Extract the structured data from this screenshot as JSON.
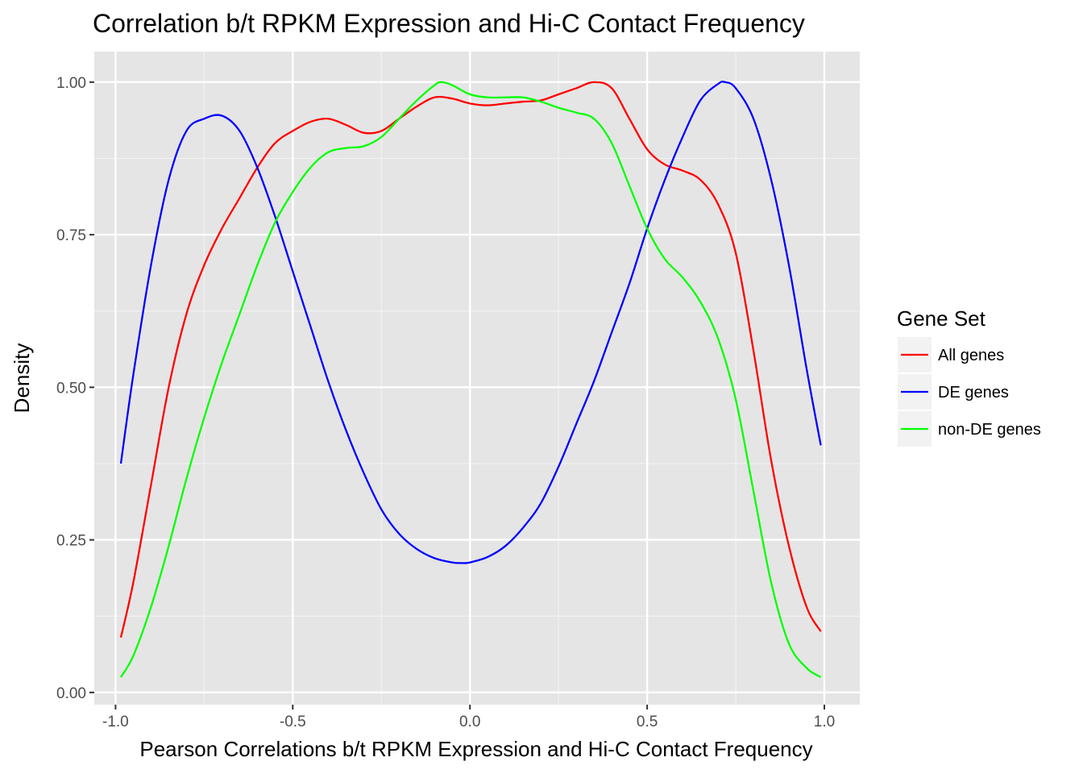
{
  "chart_data": {
    "type": "line",
    "title": "Correlation b/t RPKM Expression and Hi-C Contact Frequency",
    "xlabel": "Pearson Correlations b/t RPKM Expression and Hi-C Contact Frequency",
    "ylabel": "Density",
    "xlim": [
      -1.06,
      1.1
    ],
    "ylim": [
      -0.02,
      1.05
    ],
    "x_ticks": [
      -1.0,
      -0.5,
      0.0,
      0.5,
      1.0
    ],
    "x_tick_labels": [
      "-1.0",
      "-0.5",
      "0.0",
      "0.5",
      "1.0"
    ],
    "y_ticks": [
      0.0,
      0.25,
      0.5,
      0.75,
      1.0
    ],
    "y_tick_labels": [
      "0.00",
      "0.25",
      "0.50",
      "0.75",
      "1.00"
    ],
    "grid": true,
    "panel_background": "#e5e5e5",
    "legend": {
      "title": "Gene Set",
      "position": "right"
    },
    "series": [
      {
        "name": "All genes",
        "color": "#ff0000",
        "x": [
          -0.985,
          -0.95,
          -0.9,
          -0.85,
          -0.8,
          -0.75,
          -0.7,
          -0.65,
          -0.6,
          -0.55,
          -0.5,
          -0.45,
          -0.4,
          -0.35,
          -0.3,
          -0.25,
          -0.2,
          -0.15,
          -0.1,
          -0.05,
          0.0,
          0.05,
          0.1,
          0.15,
          0.2,
          0.25,
          0.3,
          0.35,
          0.4,
          0.45,
          0.5,
          0.55,
          0.6,
          0.65,
          0.7,
          0.75,
          0.8,
          0.85,
          0.9,
          0.95,
          0.99
        ],
        "y": [
          0.09,
          0.18,
          0.34,
          0.5,
          0.62,
          0.7,
          0.76,
          0.81,
          0.86,
          0.9,
          0.92,
          0.935,
          0.94,
          0.93,
          0.917,
          0.92,
          0.94,
          0.96,
          0.975,
          0.973,
          0.965,
          0.962,
          0.965,
          0.968,
          0.97,
          0.98,
          0.99,
          1.0,
          0.99,
          0.94,
          0.89,
          0.865,
          0.855,
          0.84,
          0.8,
          0.72,
          0.56,
          0.38,
          0.24,
          0.14,
          0.1
        ]
      },
      {
        "name": "DE genes",
        "color": "#0000ff",
        "x": [
          -0.985,
          -0.95,
          -0.9,
          -0.85,
          -0.8,
          -0.75,
          -0.7,
          -0.65,
          -0.6,
          -0.55,
          -0.5,
          -0.45,
          -0.4,
          -0.35,
          -0.3,
          -0.25,
          -0.2,
          -0.15,
          -0.1,
          -0.05,
          -0.02,
          0.0,
          0.05,
          0.1,
          0.15,
          0.2,
          0.25,
          0.3,
          0.35,
          0.4,
          0.45,
          0.5,
          0.55,
          0.6,
          0.65,
          0.7,
          0.72,
          0.75,
          0.8,
          0.85,
          0.9,
          0.95,
          0.99
        ],
        "y": [
          0.375,
          0.52,
          0.7,
          0.84,
          0.92,
          0.94,
          0.945,
          0.92,
          0.86,
          0.78,
          0.69,
          0.6,
          0.51,
          0.43,
          0.36,
          0.3,
          0.26,
          0.235,
          0.22,
          0.213,
          0.212,
          0.213,
          0.222,
          0.24,
          0.27,
          0.31,
          0.37,
          0.44,
          0.51,
          0.59,
          0.67,
          0.76,
          0.84,
          0.91,
          0.97,
          0.997,
          1.0,
          0.99,
          0.94,
          0.84,
          0.7,
          0.53,
          0.405
        ]
      },
      {
        "name": "non-DE genes",
        "color": "#00ff00",
        "x": [
          -0.985,
          -0.95,
          -0.9,
          -0.85,
          -0.8,
          -0.75,
          -0.7,
          -0.65,
          -0.6,
          -0.55,
          -0.5,
          -0.45,
          -0.4,
          -0.35,
          -0.3,
          -0.25,
          -0.2,
          -0.15,
          -0.1,
          -0.08,
          -0.05,
          0.0,
          0.05,
          0.1,
          0.15,
          0.2,
          0.25,
          0.3,
          0.35,
          0.4,
          0.45,
          0.5,
          0.55,
          0.6,
          0.65,
          0.7,
          0.75,
          0.8,
          0.85,
          0.9,
          0.95,
          0.99
        ],
        "y": [
          0.025,
          0.06,
          0.14,
          0.24,
          0.35,
          0.45,
          0.54,
          0.62,
          0.7,
          0.77,
          0.82,
          0.86,
          0.885,
          0.892,
          0.895,
          0.91,
          0.94,
          0.97,
          0.995,
          1.0,
          0.995,
          0.98,
          0.975,
          0.975,
          0.975,
          0.968,
          0.958,
          0.95,
          0.94,
          0.9,
          0.83,
          0.76,
          0.71,
          0.68,
          0.64,
          0.58,
          0.48,
          0.33,
          0.18,
          0.08,
          0.04,
          0.025
        ]
      }
    ]
  }
}
